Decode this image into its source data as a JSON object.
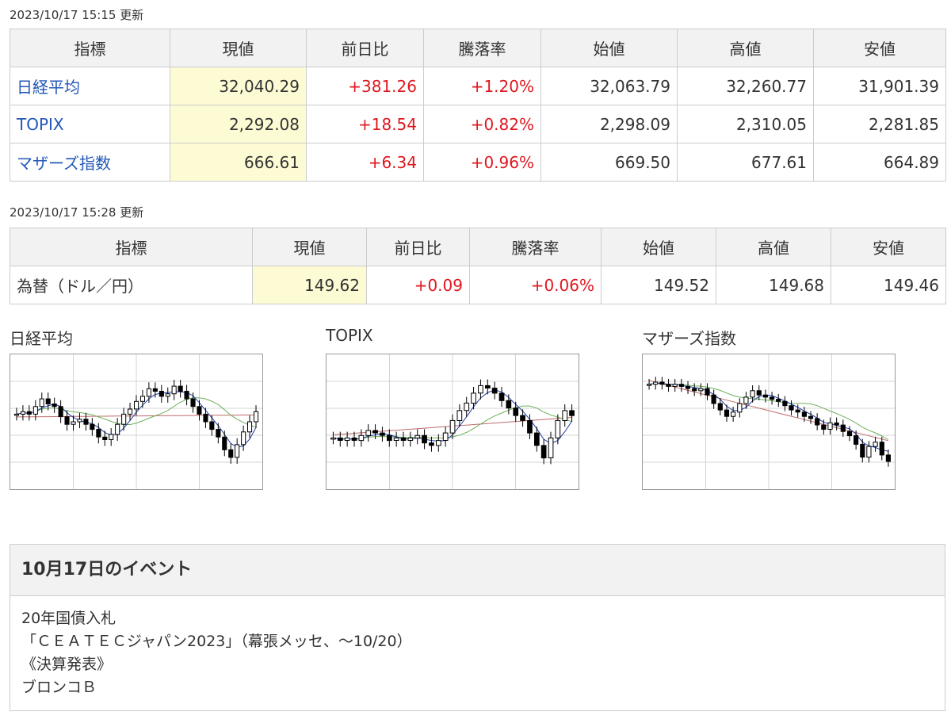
{
  "indices": {
    "updated": "2023/10/17 15:15 更新",
    "headers": [
      "指標",
      "現値",
      "前日比",
      "騰落率",
      "始値",
      "高値",
      "安値"
    ],
    "rows": [
      {
        "name": "日経平均",
        "current": "32,040.29",
        "change": "+381.26",
        "rate": "+1.20%",
        "open": "32,063.79",
        "high": "32,260.77",
        "low": "31,901.39"
      },
      {
        "name": "TOPIX",
        "current": "2,292.08",
        "change": "+18.54",
        "rate": "+0.82%",
        "open": "2,298.09",
        "high": "2,310.05",
        "low": "2,281.85"
      },
      {
        "name": "マザーズ指数",
        "current": "666.61",
        "change": "+6.34",
        "rate": "+0.96%",
        "open": "669.50",
        "high": "677.61",
        "low": "664.89"
      }
    ]
  },
  "fx": {
    "updated": "2023/10/17 15:28 更新",
    "headers": [
      "指標",
      "現値",
      "前日比",
      "騰落率",
      "始値",
      "高値",
      "安値"
    ],
    "rows": [
      {
        "name": "為替（ドル／円）",
        "current": "149.62",
        "change": "+0.09",
        "rate": "+0.06%",
        "open": "149.52",
        "high": "149.68",
        "low": "149.46"
      }
    ]
  },
  "charts": {
    "nikkei_title": "日経平均",
    "topix_title": "TOPIX",
    "mothers_title": "マザーズ指数",
    "series": [
      [
        50,
        51,
        50,
        53,
        56,
        54,
        53,
        49,
        46,
        47,
        48,
        46,
        44,
        41,
        40,
        42,
        46,
        50,
        52,
        55,
        57,
        60,
        59,
        57,
        58,
        61,
        59,
        56,
        53,
        50,
        47,
        44,
        41,
        36,
        33,
        38,
        43,
        47,
        51
      ],
      [
        45,
        44,
        45,
        44,
        46,
        48,
        47,
        46,
        44,
        45,
        44,
        45,
        46,
        43,
        42,
        44,
        47,
        52,
        56,
        59,
        63,
        66,
        65,
        63,
        60,
        57,
        54,
        52,
        47,
        42,
        37,
        45,
        52,
        56,
        54
      ],
      [
        60,
        61,
        60,
        59,
        60,
        59,
        58,
        57,
        58,
        55,
        51,
        48,
        45,
        47,
        51,
        54,
        57,
        55,
        54,
        53,
        52,
        50,
        48,
        47,
        45,
        44,
        41,
        39,
        42,
        41,
        38,
        36,
        32,
        26,
        31,
        33,
        27,
        24
      ]
    ],
    "colors": {
      "candle": "#000000",
      "ma_short": "#1f3fa8",
      "ma_mid": "#6cb05a",
      "ma_long": "#c06a6a",
      "grid": "#d4d4d4"
    }
  },
  "events": {
    "title": "10月17日のイベント",
    "items": [
      "20年国債入札",
      "「ＣＥＡＴＥＣジャパン2023」（幕張メッセ、～10/20）",
      "《決算発表》",
      "ブロンコＢ"
    ]
  }
}
